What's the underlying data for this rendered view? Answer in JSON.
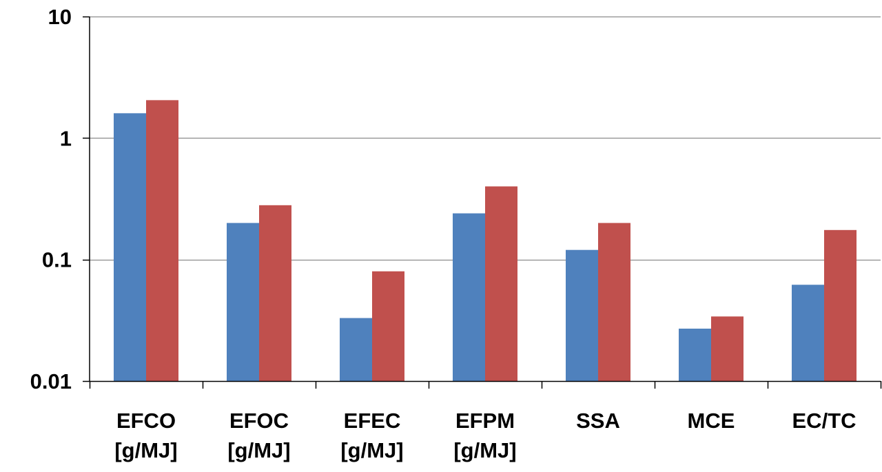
{
  "chart_data": {
    "type": "bar",
    "scale": "log",
    "ylim": [
      0.01,
      10
    ],
    "yticks": [
      "10",
      "1",
      "0.1",
      "0.01"
    ],
    "ytick_values": [
      10,
      1,
      0.1,
      0.01
    ],
    "grid": true,
    "legend": "none",
    "categories": [
      [
        "EFCO",
        "[g/MJ]"
      ],
      [
        "EFOC",
        "[g/MJ]"
      ],
      [
        "EFEC",
        "[g/MJ]"
      ],
      [
        "EFPM",
        "[g/MJ]"
      ],
      [
        "SSA"
      ],
      [
        "MCE"
      ],
      [
        "EC/TC"
      ]
    ],
    "series": [
      {
        "color": "#4F81BD",
        "values": [
          1.6,
          0.2,
          0.033,
          0.24,
          0.12,
          0.027,
          0.062
        ]
      },
      {
        "color": "#C0504D",
        "values": [
          2.05,
          0.28,
          0.08,
          0.4,
          0.2,
          0.034,
          0.175
        ]
      }
    ]
  }
}
